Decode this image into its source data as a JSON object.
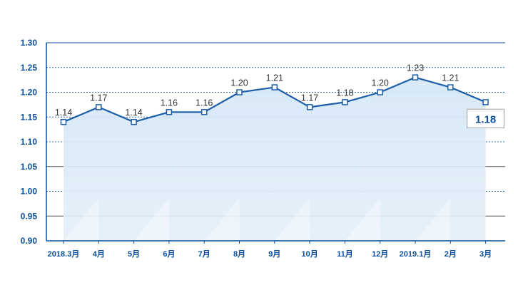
{
  "colors": {
    "axis": "#0b4f9c",
    "line": "#1d5ea8",
    "dotted_grid": "#2a6ab4",
    "solid_grid": "#555555",
    "area": "#d3e6f6",
    "callout_border": "#bbbbbb",
    "callout_text": "#0b4f9c"
  },
  "chart_data": {
    "type": "line",
    "title": "",
    "xlabel": "",
    "ylabel": "",
    "ylim": [
      0.9,
      1.3
    ],
    "yticks": [
      "1.30",
      "1.25",
      "1.20",
      "1.15",
      "1.10",
      "1.05",
      "1.00",
      "0.95",
      "0.90"
    ],
    "solid_gridlines": [
      1.05,
      0.95
    ],
    "dotted_gridlines": [
      1.25,
      1.2,
      1.15,
      1.1,
      1.0
    ],
    "categories": [
      "2018.3月",
      "4月",
      "5月",
      "6月",
      "7月",
      "8月",
      "9月",
      "10月",
      "11月",
      "12月",
      "2019.1月",
      "2月",
      "3月"
    ],
    "values": [
      1.14,
      1.17,
      1.14,
      1.16,
      1.16,
      1.2,
      1.21,
      1.17,
      1.18,
      1.2,
      1.23,
      1.21,
      1.18
    ],
    "labels": [
      "1.14",
      "1.17",
      "1.14",
      "1.16",
      "1.16",
      "1.20",
      "1.21",
      "1.17",
      "1.18",
      "1.20",
      "1.23",
      "1.21",
      ""
    ],
    "callout": "1.18"
  }
}
